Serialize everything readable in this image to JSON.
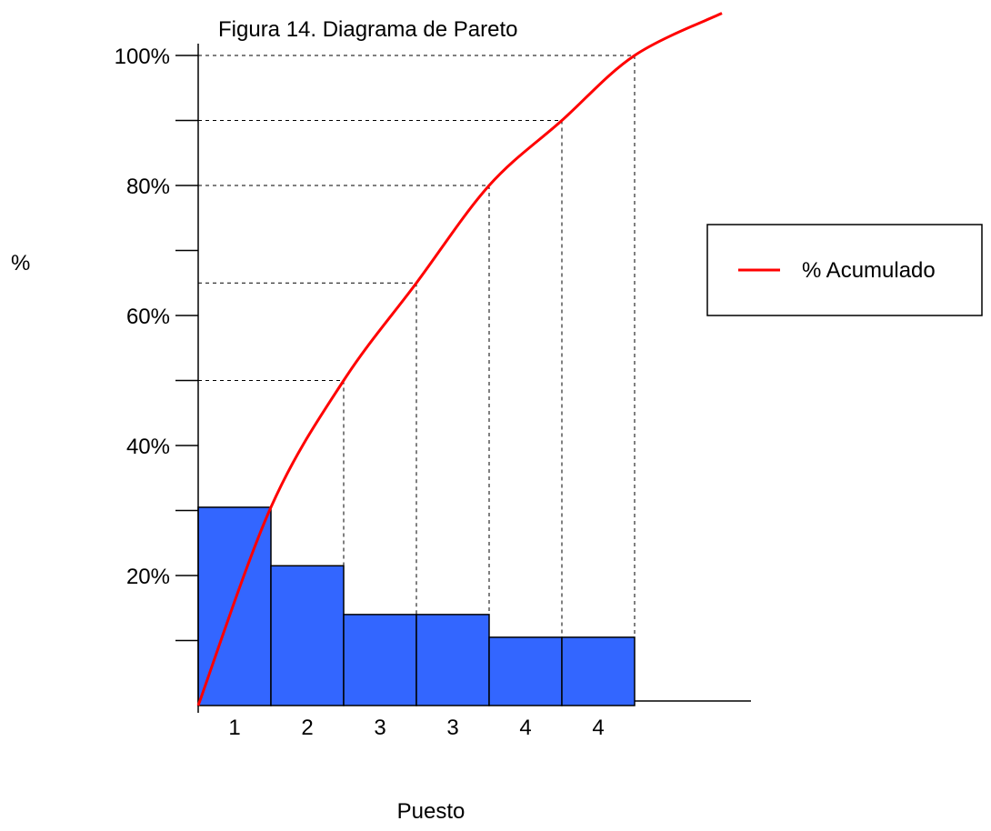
{
  "chart_data": {
    "type": "bar",
    "title": "Figura 14. Diagrama de Pareto",
    "xlabel": "Puesto",
    "ylabel": "%",
    "categories": [
      "1",
      "2",
      "3",
      "3",
      "4",
      "4"
    ],
    "values": [
      30.5,
      21.5,
      14,
      14,
      10.5,
      10.5
    ],
    "ylim": [
      0,
      100
    ],
    "yticks": [
      0,
      10,
      20,
      30,
      40,
      50,
      60,
      70,
      80,
      90,
      100
    ],
    "ytick_labels": [
      {
        "value": 20,
        "label": "20%"
      },
      {
        "value": 40,
        "label": "40%"
      },
      {
        "value": 60,
        "label": "60%"
      },
      {
        "value": 80,
        "label": "80%"
      },
      {
        "value": 100,
        "label": "100%"
      }
    ],
    "series": [
      {
        "name": "% Acumulado",
        "type": "line",
        "color": "#ff0000",
        "x": [
          0,
          1,
          2,
          3,
          4,
          5,
          6,
          7.2
        ],
        "values": [
          0,
          30.5,
          50,
          65,
          80,
          90,
          100,
          106.5
        ]
      }
    ],
    "reference_lines": [
      {
        "value": 50,
        "to_boundary": 2
      },
      {
        "value": 65,
        "to_boundary": 3
      },
      {
        "value": 80,
        "to_boundary": 4
      },
      {
        "value": 90,
        "to_boundary": 5
      },
      {
        "value": 100,
        "to_boundary": 6
      }
    ],
    "bar_color": "#3366ff",
    "grid": false,
    "legend": {
      "position": "right",
      "label": "% Acumulado"
    }
  }
}
